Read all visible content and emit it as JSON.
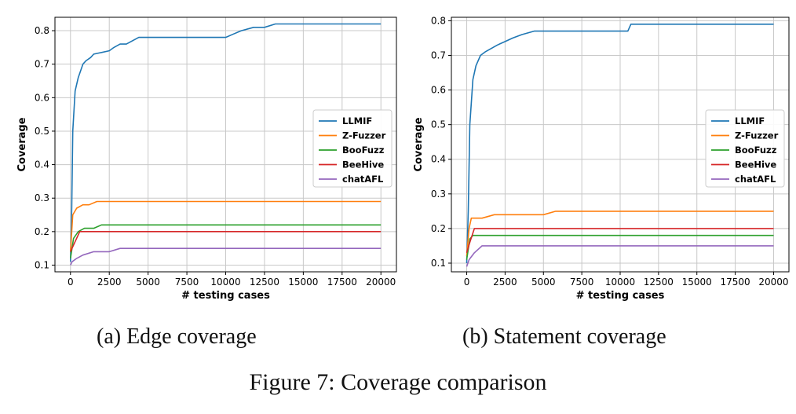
{
  "figure_caption": "Figure 7: Coverage comparison",
  "colors": {
    "LLMIF": "#1f77b4",
    "Z-Fuzzer": "#ff7f0e",
    "BooFuzz": "#2ca02c",
    "BeeHive": "#d62728",
    "chatAFL": "#9467bd"
  },
  "chart_data": [
    {
      "type": "line",
      "caption": "(a) Edge coverage",
      "xlabel": "# testing cases",
      "ylabel": "Coverage",
      "xlim": [
        -1000,
        21000
      ],
      "ylim": [
        0.08,
        0.84
      ],
      "xticks": [
        0,
        2500,
        5000,
        7500,
        10000,
        12500,
        15000,
        17500,
        20000
      ],
      "yticks": [
        0.1,
        0.2,
        0.3,
        0.4,
        0.5,
        0.6,
        0.7,
        0.8
      ],
      "grid": true,
      "legend_position": "center-right",
      "series": [
        {
          "name": "LLMIF",
          "color": "#1f77b4",
          "x": [
            0,
            80,
            150,
            300,
            500,
            800,
            1000,
            1300,
            1500,
            2000,
            2500,
            2800,
            3200,
            3600,
            4400,
            5000,
            7000,
            10000,
            10500,
            11000,
            11800,
            12500,
            13200,
            15000,
            20000
          ],
          "y": [
            0.11,
            0.27,
            0.5,
            0.62,
            0.66,
            0.7,
            0.71,
            0.72,
            0.73,
            0.735,
            0.74,
            0.75,
            0.76,
            0.76,
            0.78,
            0.78,
            0.78,
            0.78,
            0.79,
            0.8,
            0.81,
            0.81,
            0.82,
            0.82,
            0.82
          ]
        },
        {
          "name": "Z-Fuzzer",
          "color": "#ff7f0e",
          "x": [
            0,
            150,
            400,
            800,
            1200,
            1700,
            5000,
            20000
          ],
          "y": [
            0.14,
            0.25,
            0.27,
            0.28,
            0.28,
            0.29,
            0.29,
            0.29
          ]
        },
        {
          "name": "BooFuzz",
          "color": "#2ca02c",
          "x": [
            0,
            200,
            500,
            900,
            1500,
            2000,
            5000,
            20000
          ],
          "y": [
            0.12,
            0.18,
            0.2,
            0.21,
            0.21,
            0.22,
            0.22,
            0.22
          ]
        },
        {
          "name": "BeeHive",
          "color": "#d62728",
          "x": [
            0,
            300,
            600,
            5000,
            20000
          ],
          "y": [
            0.14,
            0.17,
            0.2,
            0.2,
            0.2
          ]
        },
        {
          "name": "chatAFL",
          "color": "#9467bd",
          "x": [
            0,
            100,
            400,
            800,
            1500,
            2500,
            3200,
            5000,
            20000
          ],
          "y": [
            0.1,
            0.11,
            0.12,
            0.13,
            0.14,
            0.14,
            0.15,
            0.15,
            0.15
          ]
        }
      ]
    },
    {
      "type": "line",
      "caption": "(b) Statement coverage",
      "xlabel": "# testing cases",
      "ylabel": "Coverage",
      "xlim": [
        -1000,
        21000
      ],
      "ylim": [
        0.075,
        0.81
      ],
      "xticks": [
        0,
        2500,
        5000,
        7500,
        10000,
        12500,
        15000,
        17500,
        20000
      ],
      "yticks": [
        0.1,
        0.2,
        0.3,
        0.4,
        0.5,
        0.6,
        0.7,
        0.8
      ],
      "grid": true,
      "legend_position": "center-right",
      "series": [
        {
          "name": "LLMIF",
          "color": "#1f77b4",
          "x": [
            0,
            100,
            200,
            400,
            600,
            900,
            1200,
            1600,
            2000,
            2500,
            3000,
            3600,
            4400,
            5000,
            10500,
            10700,
            15000,
            20000
          ],
          "y": [
            0.1,
            0.25,
            0.5,
            0.63,
            0.67,
            0.7,
            0.71,
            0.72,
            0.73,
            0.74,
            0.75,
            0.76,
            0.77,
            0.77,
            0.77,
            0.79,
            0.79,
            0.79
          ]
        },
        {
          "name": "Z-Fuzzer",
          "color": "#ff7f0e",
          "x": [
            0,
            150,
            300,
            1000,
            1800,
            5000,
            5800,
            20000
          ],
          "y": [
            0.12,
            0.2,
            0.23,
            0.23,
            0.24,
            0.24,
            0.25,
            0.25
          ]
        },
        {
          "name": "BooFuzz",
          "color": "#2ca02c",
          "x": [
            0,
            200,
            400,
            20000
          ],
          "y": [
            0.11,
            0.17,
            0.18,
            0.18
          ]
        },
        {
          "name": "BeeHive",
          "color": "#d62728",
          "x": [
            0,
            200,
            500,
            20000
          ],
          "y": [
            0.13,
            0.16,
            0.2,
            0.2
          ]
        },
        {
          "name": "chatAFL",
          "color": "#9467bd",
          "x": [
            0,
            150,
            500,
            1000,
            20000
          ],
          "y": [
            0.09,
            0.11,
            0.13,
            0.15,
            0.15
          ]
        }
      ]
    }
  ]
}
